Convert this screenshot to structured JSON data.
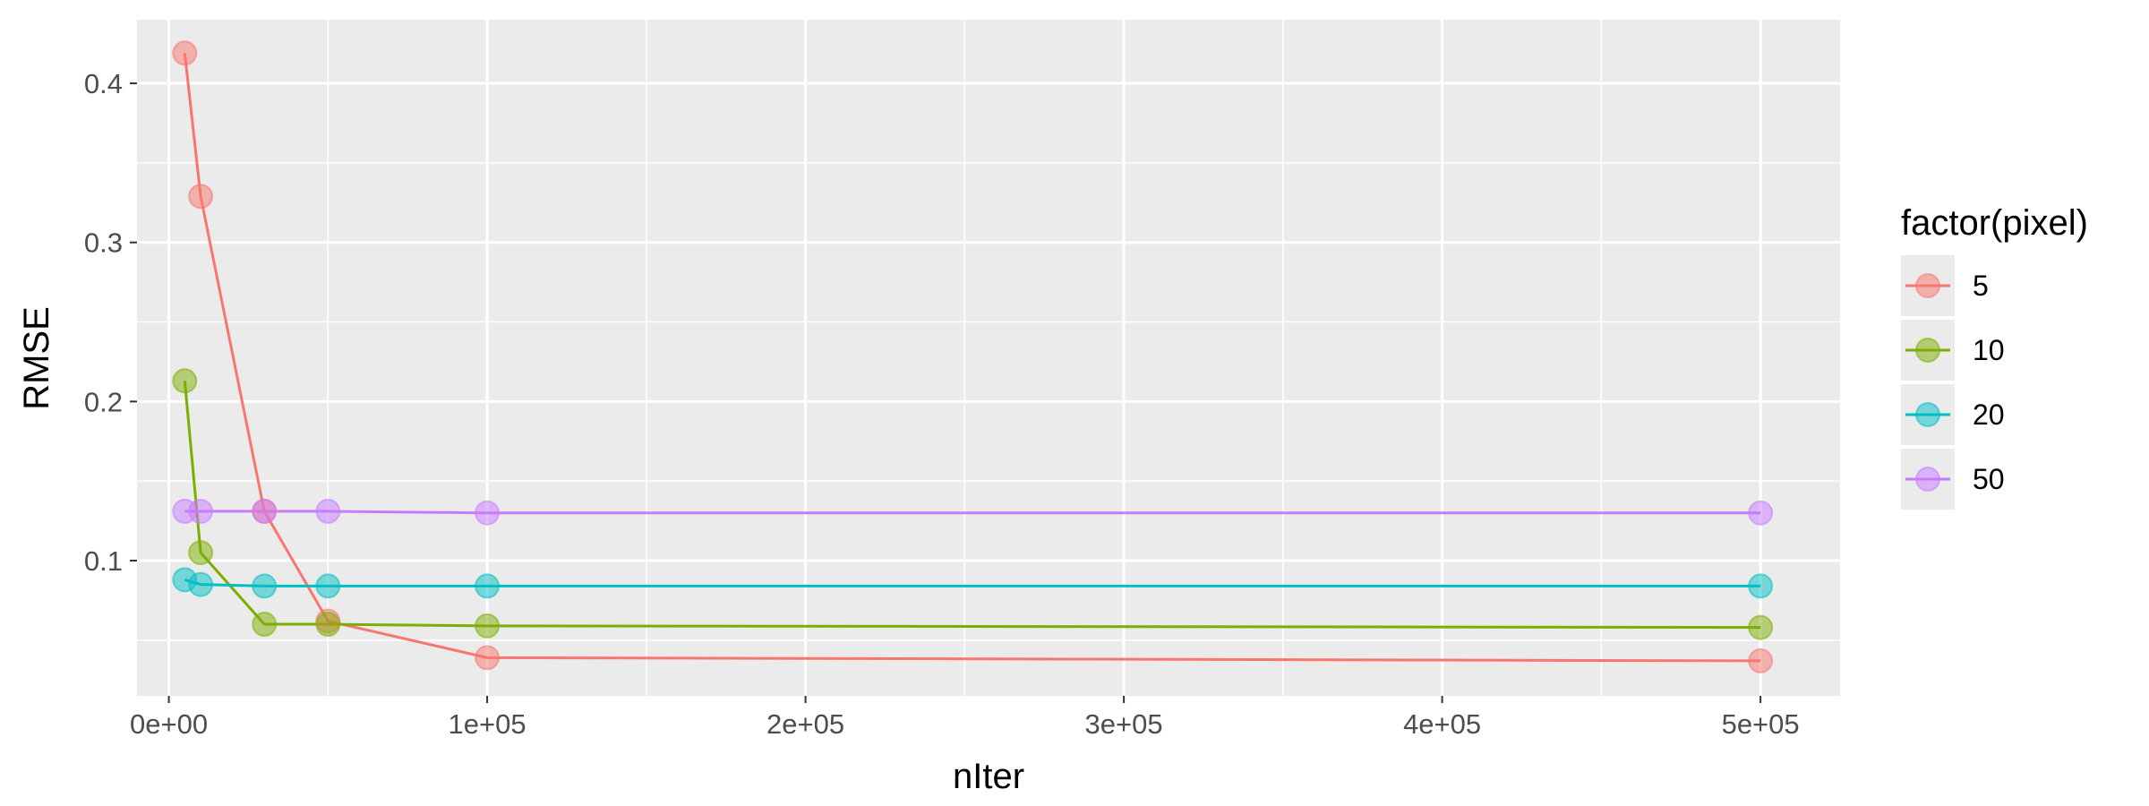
{
  "chart_data": {
    "type": "line",
    "xlabel": "nIter",
    "ylabel": "RMSE",
    "xlim": [
      -10000,
      525000
    ],
    "ylim": [
      0.015,
      0.44
    ],
    "x_ticks": [
      0,
      100000,
      200000,
      300000,
      400000,
      500000
    ],
    "x_tick_labels": [
      "0e+00",
      "1e+05",
      "2e+05",
      "3e+05",
      "4e+05",
      "5e+05"
    ],
    "y_ticks": [
      0.1,
      0.2,
      0.3,
      0.4
    ],
    "y_tick_labels": [
      "0.1",
      "0.2",
      "0.3",
      "0.4"
    ],
    "grid": true,
    "legend": {
      "title": "factor(pixel)",
      "position": "right"
    },
    "series": [
      {
        "name": "5",
        "color": "#F8766D",
        "x": [
          5000,
          10000,
          30000,
          50000,
          100000,
          500000
        ],
        "y": [
          0.419,
          0.329,
          0.131,
          0.062,
          0.039,
          0.037
        ]
      },
      {
        "name": "10",
        "color": "#7CAE00",
        "x": [
          5000,
          10000,
          30000,
          50000,
          100000,
          500000
        ],
        "y": [
          0.213,
          0.105,
          0.06,
          0.06,
          0.059,
          0.058
        ]
      },
      {
        "name": "20",
        "color": "#00BFC4",
        "x": [
          5000,
          10000,
          30000,
          50000,
          100000,
          500000
        ],
        "y": [
          0.088,
          0.085,
          0.084,
          0.084,
          0.084,
          0.084
        ]
      },
      {
        "name": "50",
        "color": "#C77CFF",
        "x": [
          5000,
          10000,
          30000,
          50000,
          100000,
          500000
        ],
        "y": [
          0.131,
          0.131,
          0.131,
          0.131,
          0.13,
          0.13
        ]
      }
    ]
  }
}
